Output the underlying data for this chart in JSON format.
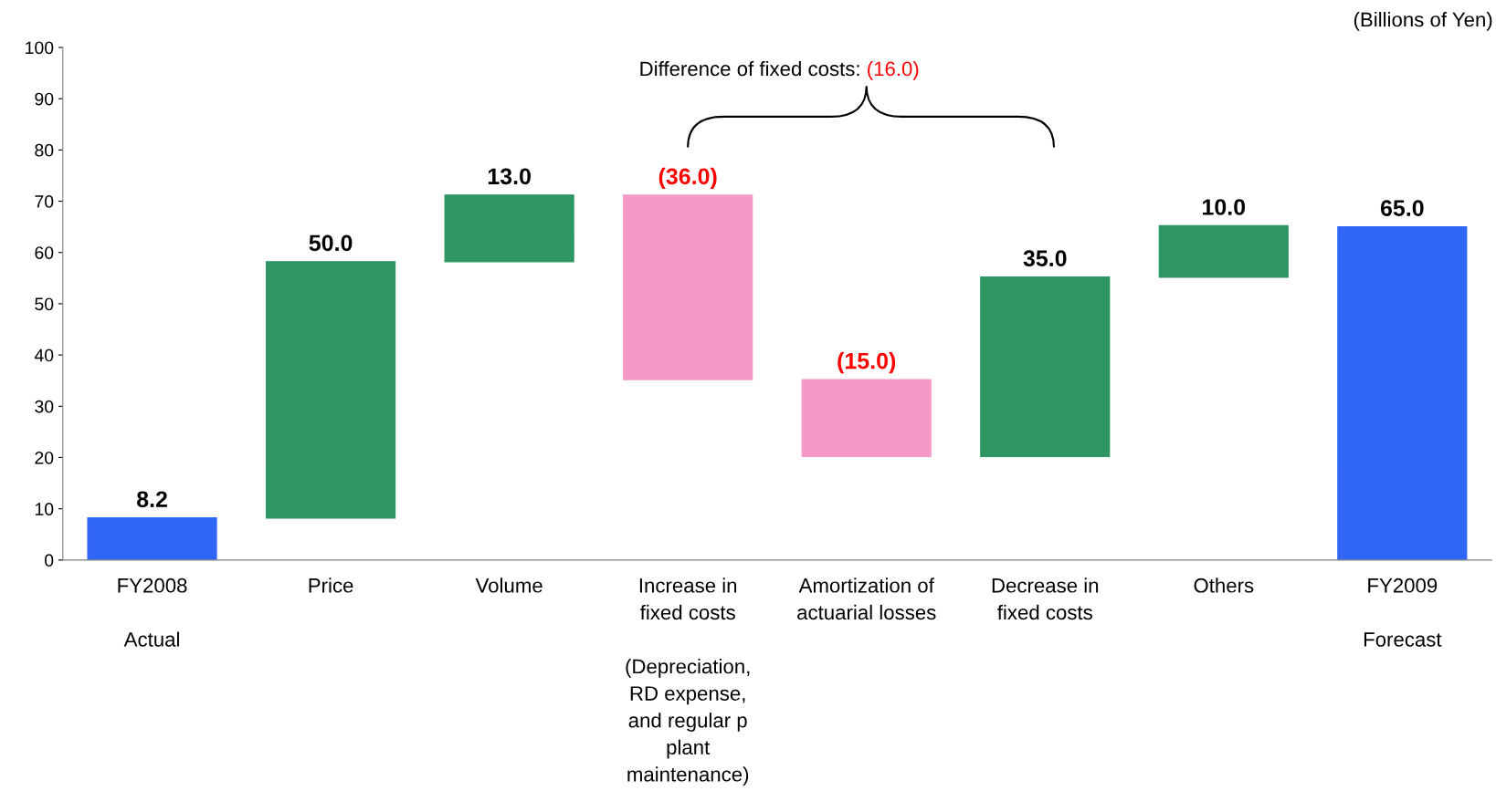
{
  "chart_data": {
    "type": "bar",
    "categories": [
      "FY2008\n\nActual",
      "Price",
      "Volume",
      "Increase in\nfixed costs\n\n(Depreciation,\nRD expense,\nand regular p\nplant\nmaintenance)",
      "Amortization of\nactuarial losses",
      "Decrease in\nfixed costs",
      "Others",
      "FY2009\n\nForecast"
    ],
    "values": [
      8.2,
      50.0,
      13.0,
      -36.0,
      -15.0,
      35.0,
      10.0,
      65.0
    ],
    "base": [
      0,
      8.2,
      58.2,
      71.2,
      35.2,
      20.2,
      55.2,
      0
    ],
    "colors": [
      "#2f66f5",
      "#2e9663",
      "#2e9663",
      "#f59ac8",
      "#f59ac8",
      "#2e9663",
      "#2e9663",
      "#2f66f5"
    ],
    "value_labels": [
      "8.2",
      "50.0",
      "13.0",
      "(36.0)",
      "(15.0)",
      "35.0",
      "10.0",
      "65.0"
    ],
    "annotations": [
      "(Billions of Yen)",
      "Difference of fixed costs:",
      "(16.0)"
    ],
    "ylim": [
      0,
      100
    ],
    "yticks": [
      0,
      10,
      20,
      30,
      40,
      50,
      60,
      70,
      80,
      90,
      100
    ],
    "grid": false,
    "legend": false
  }
}
